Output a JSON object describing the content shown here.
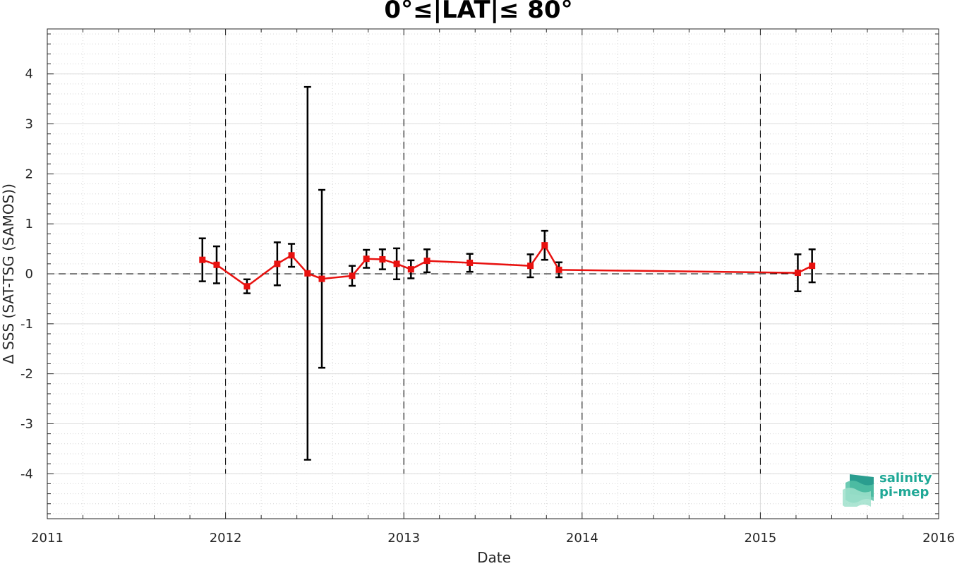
{
  "chart_data": {
    "type": "line",
    "title": "0°≤|LAT|≤ 80°",
    "xlabel": "Date",
    "ylabel": "Δ SSS (SAT-TSG (SAMOS))",
    "xlim": [
      2011,
      2016
    ],
    "ylim": [
      -4.9,
      4.9
    ],
    "x_ticks": [
      2011,
      2012,
      2013,
      2014,
      2015,
      2016
    ],
    "y_ticks": [
      -4,
      -3,
      -2,
      -1,
      0,
      1,
      2,
      3,
      4
    ],
    "grid": true,
    "minor_grid": true,
    "zero_line": "dashed",
    "year_markers": [
      2012,
      2013,
      2014,
      2015
    ],
    "series": [
      {
        "x": [
          2011.87,
          2011.95,
          2012.12,
          2012.29,
          2012.37,
          2012.46,
          2012.54,
          2012.71,
          2012.79,
          2012.88,
          2012.96,
          2013.04,
          2013.13,
          2013.37,
          2013.71,
          2013.79,
          2013.87,
          2015.21,
          2015.29
        ],
        "y": [
          0.28,
          0.18,
          -0.25,
          0.2,
          0.37,
          0.01,
          -0.1,
          -0.04,
          0.3,
          0.29,
          0.2,
          0.09,
          0.26,
          0.22,
          0.16,
          0.57,
          0.08,
          0.02,
          0.16
        ],
        "err": [
          0.43,
          0.37,
          0.14,
          0.43,
          0.23,
          3.73,
          1.78,
          0.2,
          0.18,
          0.2,
          0.31,
          0.18,
          0.23,
          0.18,
          0.23,
          0.29,
          0.15,
          0.37,
          0.33
        ]
      }
    ],
    "colors": {
      "line": "#e8110f",
      "errorbar": "#000000",
      "grid": "#dcdcdc",
      "axis": "#262626"
    }
  },
  "logo": {
    "line1": "salinity",
    "line2": "pi-mep",
    "color": "#1fa896"
  }
}
